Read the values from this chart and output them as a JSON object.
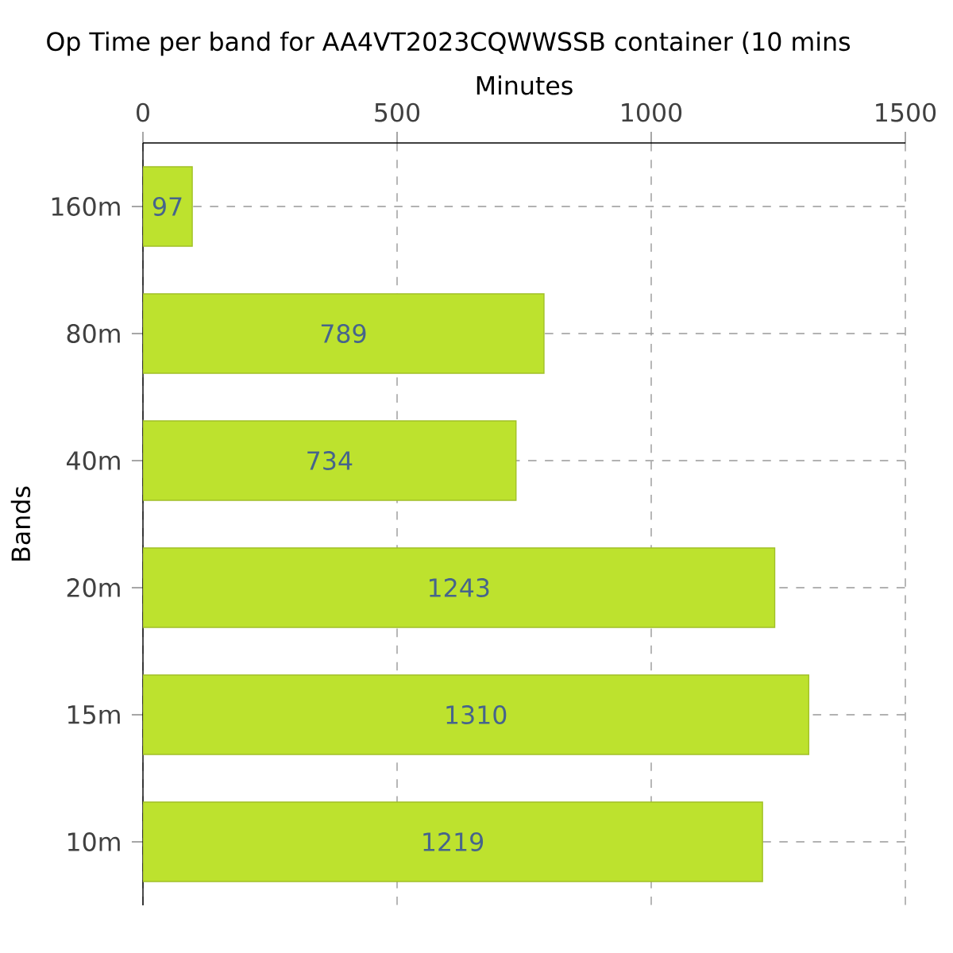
{
  "chart_data": {
    "type": "bar",
    "orientation": "horizontal",
    "title": "Op Time per band for AA4VT2023CQWWSSB container (10 mins",
    "xlabel": "Minutes",
    "ylabel": "Bands",
    "categories": [
      "160m",
      "80m",
      "40m",
      "20m",
      "15m",
      "10m"
    ],
    "values": [
      97,
      789,
      734,
      1243,
      1310,
      1219
    ],
    "color": "#bde22e",
    "xlim": [
      0,
      1500
    ],
    "xticks": [
      0,
      500,
      1000,
      1500
    ],
    "grid": true,
    "data_labels": true
  }
}
